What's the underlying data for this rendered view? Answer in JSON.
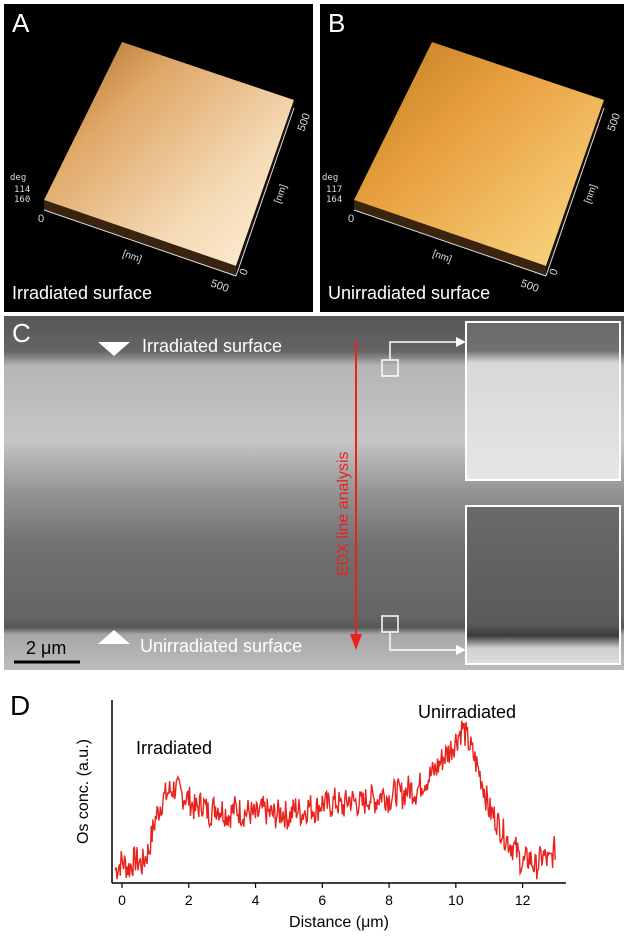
{
  "panelA": {
    "label": "A",
    "caption": "Irradiated surface",
    "axis_unit_1": "[nm]",
    "axis_unit_2": "[nm]",
    "axis_max_1": "500",
    "axis_max_2": "500",
    "origin": "0",
    "z_unit": "deg",
    "z_ticks": [
      "114",
      "160"
    ]
  },
  "panelB": {
    "label": "B",
    "caption": "Unirradiated surface",
    "axis_unit_1": "[nm]",
    "axis_unit_2": "[nm]",
    "axis_max_1": "500",
    "axis_max_2": "500",
    "origin": "0",
    "z_unit": "deg",
    "z_ticks": [
      "117",
      "164"
    ]
  },
  "panelC": {
    "label": "C",
    "top_label": "Irradiated surface",
    "bottom_label": "Unirradiated surface",
    "edx_label": "EDX line analysis",
    "scale_bar": "2 μm"
  },
  "panelD": {
    "label": "D"
  },
  "chart_data": {
    "type": "line",
    "xlabel": "Distance (μm)",
    "ylabel": "Os conc. (a.u.)",
    "xlim": [
      -0.3,
      13.3
    ],
    "ylim": [
      0,
      1
    ],
    "xticks": [
      0,
      2,
      4,
      6,
      8,
      10,
      12
    ],
    "annotations": [
      "Irradiated",
      "Unirradiated"
    ],
    "series": [
      {
        "color": "#e8221c",
        "x": [
          -0.2,
          0.0,
          0.2,
          0.4,
          0.6,
          0.8,
          1.0,
          1.2,
          1.4,
          1.6,
          1.8,
          2.0,
          2.2,
          2.4,
          2.6,
          2.8,
          3.0,
          3.2,
          3.4,
          3.6,
          3.8,
          4.0,
          4.2,
          4.4,
          4.6,
          4.8,
          5.0,
          5.2,
          5.4,
          5.6,
          5.8,
          6.0,
          6.2,
          6.4,
          6.6,
          6.8,
          7.0,
          7.2,
          7.4,
          7.6,
          7.8,
          8.0,
          8.2,
          8.4,
          8.6,
          8.8,
          9.0,
          9.2,
          9.4,
          9.6,
          9.8,
          10.0,
          10.2,
          10.4,
          10.6,
          10.8,
          11.0,
          11.2,
          11.4,
          11.6,
          11.8,
          12.0,
          12.2,
          12.4,
          12.6,
          12.8,
          13.0
        ],
        "y": [
          0.07,
          0.12,
          0.08,
          0.13,
          0.1,
          0.18,
          0.35,
          0.45,
          0.5,
          0.52,
          0.48,
          0.46,
          0.4,
          0.44,
          0.38,
          0.42,
          0.4,
          0.37,
          0.41,
          0.38,
          0.39,
          0.36,
          0.4,
          0.38,
          0.37,
          0.39,
          0.36,
          0.41,
          0.38,
          0.42,
          0.4,
          0.44,
          0.42,
          0.45,
          0.41,
          0.46,
          0.44,
          0.43,
          0.47,
          0.45,
          0.49,
          0.46,
          0.5,
          0.48,
          0.52,
          0.5,
          0.55,
          0.58,
          0.62,
          0.68,
          0.72,
          0.78,
          0.85,
          0.76,
          0.66,
          0.55,
          0.4,
          0.35,
          0.28,
          0.22,
          0.18,
          0.1,
          0.14,
          0.08,
          0.15,
          0.11,
          0.2
        ]
      }
    ]
  }
}
